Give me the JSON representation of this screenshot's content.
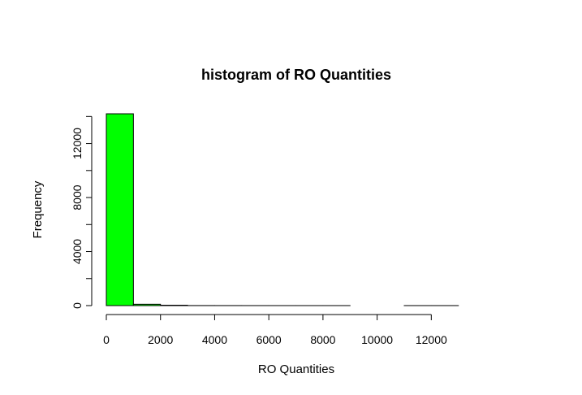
{
  "chart_data": {
    "type": "bar",
    "title": "histogram of RO Quantities",
    "xlabel": "RO Quantities",
    "ylabel": "Frequency",
    "bar_color": "#00ff00",
    "bins": [
      {
        "start": 0,
        "end": 1000,
        "count": 14200
      },
      {
        "start": 1000,
        "end": 2000,
        "count": 100
      },
      {
        "start": 2000,
        "end": 3000,
        "count": 30
      },
      {
        "start": 3000,
        "end": 4000,
        "count": 5
      },
      {
        "start": 4000,
        "end": 5000,
        "count": 3
      },
      {
        "start": 5000,
        "end": 6000,
        "count": 2
      },
      {
        "start": 6000,
        "end": 7000,
        "count": 1
      },
      {
        "start": 7000,
        "end": 8000,
        "count": 1
      },
      {
        "start": 8000,
        "end": 9000,
        "count": 1
      },
      {
        "start": 9000,
        "end": 10000,
        "count": 0
      },
      {
        "start": 10000,
        "end": 11000,
        "count": 0
      },
      {
        "start": 11000,
        "end": 12000,
        "count": 1
      },
      {
        "start": 12000,
        "end": 13000,
        "count": 1
      }
    ],
    "xlim": [
      0,
      13000
    ],
    "ylim": [
      0,
      14200
    ],
    "x_ticks": [
      0,
      2000,
      4000,
      6000,
      8000,
      10000,
      12000
    ],
    "y_ticks": [
      0,
      2000,
      4000,
      6000,
      8000,
      10000,
      12000,
      14000
    ],
    "y_tick_labels": [
      "0",
      "",
      "4000",
      "",
      "8000",
      "",
      "12000",
      ""
    ],
    "grid": false,
    "legend": "none"
  }
}
